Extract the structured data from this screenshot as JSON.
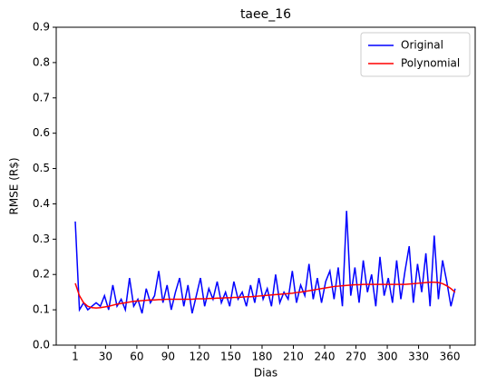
{
  "chart_data": {
    "type": "line",
    "title": "taee_16",
    "xlabel": "Dias",
    "ylabel": "RMSE (R$)",
    "x": [
      1,
      5,
      9,
      13,
      17,
      21,
      25,
      29,
      33,
      37,
      41,
      45,
      49,
      53,
      57,
      61,
      65,
      69,
      73,
      77,
      81,
      85,
      89,
      93,
      97,
      101,
      105,
      109,
      113,
      117,
      121,
      125,
      129,
      133,
      137,
      141,
      145,
      149,
      153,
      157,
      161,
      165,
      169,
      173,
      177,
      181,
      185,
      189,
      193,
      197,
      201,
      205,
      209,
      213,
      217,
      221,
      225,
      229,
      233,
      237,
      241,
      245,
      249,
      253,
      257,
      261,
      265,
      269,
      273,
      277,
      281,
      285,
      289,
      293,
      297,
      301,
      305,
      309,
      313,
      317,
      321,
      325,
      329,
      333,
      337,
      341,
      345,
      349,
      353,
      357,
      361,
      365
    ],
    "series": [
      {
        "name": "Original",
        "color": "#0000ff",
        "values": [
          0.35,
          0.1,
          0.12,
          0.1,
          0.11,
          0.12,
          0.11,
          0.14,
          0.1,
          0.17,
          0.11,
          0.13,
          0.1,
          0.19,
          0.11,
          0.13,
          0.09,
          0.16,
          0.12,
          0.14,
          0.21,
          0.12,
          0.17,
          0.1,
          0.15,
          0.19,
          0.11,
          0.17,
          0.09,
          0.14,
          0.19,
          0.11,
          0.16,
          0.13,
          0.18,
          0.12,
          0.15,
          0.11,
          0.18,
          0.13,
          0.15,
          0.11,
          0.17,
          0.12,
          0.19,
          0.13,
          0.16,
          0.11,
          0.2,
          0.12,
          0.15,
          0.13,
          0.21,
          0.12,
          0.17,
          0.14,
          0.23,
          0.13,
          0.19,
          0.12,
          0.18,
          0.21,
          0.13,
          0.22,
          0.11,
          0.38,
          0.14,
          0.22,
          0.12,
          0.24,
          0.15,
          0.2,
          0.11,
          0.25,
          0.14,
          0.19,
          0.12,
          0.24,
          0.13,
          0.21,
          0.28,
          0.12,
          0.23,
          0.15,
          0.26,
          0.11,
          0.31,
          0.13,
          0.24,
          0.18,
          0.11,
          0.16
        ]
      },
      {
        "name": "Polynomial",
        "color": "#ff0000",
        "values": [
          0.175,
          0.14,
          0.12,
          0.11,
          0.106,
          0.105,
          0.106,
          0.108,
          0.11,
          0.113,
          0.116,
          0.118,
          0.12,
          0.122,
          0.124,
          0.125,
          0.126,
          0.127,
          0.128,
          0.128,
          0.129,
          0.129,
          0.13,
          0.13,
          0.13,
          0.13,
          0.13,
          0.13,
          0.13,
          0.131,
          0.131,
          0.131,
          0.132,
          0.132,
          0.133,
          0.133,
          0.134,
          0.134,
          0.135,
          0.135,
          0.136,
          0.137,
          0.137,
          0.138,
          0.139,
          0.14,
          0.141,
          0.142,
          0.143,
          0.144,
          0.145,
          0.146,
          0.147,
          0.149,
          0.15,
          0.152,
          0.154,
          0.156,
          0.158,
          0.16,
          0.162,
          0.164,
          0.166,
          0.167,
          0.168,
          0.169,
          0.17,
          0.171,
          0.171,
          0.172,
          0.172,
          0.172,
          0.172,
          0.172,
          0.172,
          0.172,
          0.172,
          0.172,
          0.172,
          0.172,
          0.173,
          0.174,
          0.175,
          0.176,
          0.177,
          0.178,
          0.178,
          0.177,
          0.174,
          0.168,
          0.16,
          0.15
        ]
      }
    ],
    "xlim": [
      -17.25,
      384.25
    ],
    "xticks": [
      1,
      30,
      60,
      90,
      120,
      150,
      180,
      210,
      240,
      270,
      300,
      330,
      360
    ],
    "ylim": [
      0,
      0.9
    ],
    "yticks": [
      {
        "value": 0,
        "label": "0.0"
      },
      {
        "value": 0.1,
        "label": "0.1"
      },
      {
        "value": 0.2,
        "label": "0.2"
      },
      {
        "value": 0.3,
        "label": "0.3"
      },
      {
        "value": 0.4,
        "label": "0.4"
      },
      {
        "value": 0.5,
        "label": "0.5"
      },
      {
        "value": 0.6,
        "label": "0.6"
      },
      {
        "value": 0.7,
        "label": "0.7"
      },
      {
        "value": 0.8,
        "label": "0.8"
      },
      {
        "value": 0.9,
        "label": "0.9"
      }
    ],
    "legend": "upper right"
  }
}
